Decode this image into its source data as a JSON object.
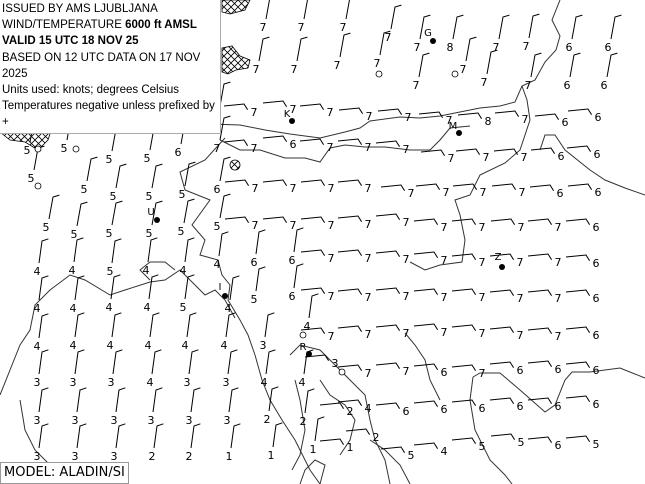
{
  "header": {
    "issued_by": "ISSUED BY AMS LJUBLJANA",
    "product_prefix": "WIND/TEMPERATURE ",
    "level": "6000 ft AMSL",
    "valid": "VALID 15 UTC 18 NOV 25",
    "based_on": "BASED ON 12 UTC DATA ON 17 NOV 2025",
    "units": "Units used: knots; degrees Celsius",
    "note": "Temperatures negative unless prefixed by +"
  },
  "model": "MODEL: ALADIN/SI",
  "cities": [
    "G",
    "K",
    "M",
    "U",
    "I",
    "Z",
    "R"
  ],
  "colors": {
    "lines": "#000000",
    "coast": "#333333",
    "terrain_hatch": "#000000",
    "background": "#ffffff"
  },
  "temperatures": [
    "7",
    "7",
    "7",
    "7",
    "7",
    "8",
    "7",
    "7",
    "6",
    "6",
    "7",
    "7",
    "7",
    "7",
    "7",
    "7",
    "7",
    "7",
    "6",
    "6",
    "6",
    "6",
    "6",
    "7",
    "7",
    "7",
    "7",
    "7",
    "7",
    "7",
    "8",
    "7",
    "6",
    "6",
    "5",
    "5",
    "5",
    "5",
    "6",
    "7",
    "7",
    "6",
    "7",
    "7",
    "7",
    "7",
    "7",
    "7",
    "6",
    "6",
    "5",
    "5",
    "5",
    "5",
    "5",
    "6",
    "7",
    "7",
    "7",
    "7",
    "7",
    "7",
    "7",
    "7",
    "6",
    "6",
    "5",
    "5",
    "5",
    "5",
    "5",
    "5",
    "7",
    "7",
    "7",
    "7",
    "7",
    "7",
    "7",
    "7",
    "7",
    "6",
    "4",
    "4",
    "5",
    "4",
    "4",
    "4",
    "6",
    "6",
    "7",
    "7",
    "7",
    "7",
    "7",
    "7",
    "7",
    "6",
    "4",
    "4",
    "4",
    "4",
    "5",
    "4",
    "5",
    "6",
    "7",
    "7",
    "7",
    "7",
    "7",
    "7",
    "7",
    "6",
    "4",
    "7",
    "7",
    "7",
    "7",
    "7",
    "7",
    "7",
    "6",
    "4",
    "4",
    "4",
    "4",
    "4",
    "4",
    "3",
    "3",
    "7",
    "7",
    "6",
    "7",
    "6",
    "6",
    "6",
    "3",
    "3",
    "3",
    "4",
    "3",
    "3",
    "4",
    "4",
    "2",
    "4",
    "6",
    "6",
    "6",
    "6",
    "6",
    "6",
    "3",
    "3",
    "3",
    "3",
    "3",
    "3",
    "2",
    "2",
    "3",
    "3",
    "3",
    "2",
    "2",
    "1",
    "1",
    "1",
    "1",
    "2",
    "5",
    "4",
    "5",
    "5",
    "6",
    "5"
  ]
}
